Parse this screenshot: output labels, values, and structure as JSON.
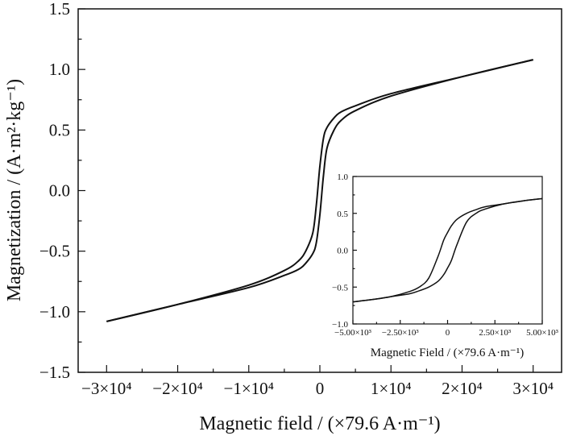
{
  "chart_data": [
    {
      "type": "line",
      "xlabel": "Magnetic field / (×79.6 A·m⁻¹)",
      "ylabel": "Magnetization / (A·m²·kg⁻¹)",
      "xlim": [
        -34000,
        34000
      ],
      "ylim": [
        -1.5,
        1.5
      ],
      "x_ticks": [
        -30000,
        -20000,
        -10000,
        0,
        10000,
        20000,
        30000
      ],
      "x_tick_labels": [
        "−3×10⁴",
        "−2×10⁴",
        "−1×10⁴",
        "0",
        "1×10⁴",
        "2×10⁴",
        "3×10⁴"
      ],
      "y_ticks": [
        -1.5,
        -1.0,
        -0.5,
        0.0,
        0.5,
        1.0,
        1.5
      ],
      "y_tick_labels": [
        "−1.5",
        "−1.0",
        "−0.5",
        "0.0",
        "0.5",
        "1.0",
        "1.5"
      ],
      "grid": false,
      "series": [
        {
          "x": [
            -30000,
            -20000,
            -10000,
            -5000,
            -3000,
            -2000,
            -1000,
            -500,
            0,
            500,
            1000,
            2000,
            3000,
            5000,
            10000,
            20000,
            30000
          ],
          "y": [
            -1.08,
            -0.94,
            -0.78,
            -0.66,
            -0.58,
            -0.5,
            -0.35,
            -0.12,
            0.2,
            0.43,
            0.52,
            0.6,
            0.65,
            0.7,
            0.8,
            0.94,
            1.08
          ]
        },
        {
          "x": [
            30000,
            20000,
            10000,
            5000,
            3000,
            2000,
            1000,
            500,
            0,
            -500,
            -1000,
            -2000,
            -3000,
            -5000,
            -10000,
            -20000,
            -30000
          ],
          "y": [
            1.08,
            0.94,
            0.78,
            0.66,
            0.58,
            0.5,
            0.35,
            0.12,
            -0.2,
            -0.43,
            -0.52,
            -0.6,
            -0.65,
            -0.7,
            -0.8,
            -0.94,
            -1.08
          ]
        }
      ]
    },
    {
      "type": "line",
      "xlabel": "Magnetic Field / (×79.6 A·m⁻¹)",
      "ylabel": "",
      "xlim": [
        -5000,
        5000
      ],
      "ylim": [
        -1.0,
        1.0
      ],
      "x_ticks": [
        -5000,
        -2500,
        0,
        2500,
        5000
      ],
      "x_tick_labels": [
        "−5.00×10³",
        "−2.50×10³",
        "0",
        "2.50×10³",
        "5.00×10³"
      ],
      "y_ticks": [
        -1.0,
        -0.5,
        0.0,
        0.5,
        1.0
      ],
      "y_tick_labels": [
        "−1.0",
        "−0.5",
        "0.0",
        "0.5",
        "1.0"
      ],
      "grid": false,
      "series": [
        {
          "x": [
            -5000,
            -4000,
            -3000,
            -2000,
            -1500,
            -1000,
            -500,
            -200,
            0,
            200,
            500,
            1000,
            1500,
            2000,
            3000,
            4000,
            5000
          ],
          "y": [
            -0.7,
            -0.67,
            -0.63,
            -0.56,
            -0.5,
            -0.38,
            -0.08,
            0.14,
            0.24,
            0.33,
            0.42,
            0.5,
            0.55,
            0.59,
            0.63,
            0.67,
            0.7
          ]
        },
        {
          "x": [
            5000,
            4000,
            3000,
            2000,
            1500,
            1000,
            500,
            200,
            0,
            -200,
            -500,
            -1000,
            -1500,
            -2000,
            -3000,
            -4000,
            -5000
          ],
          "y": [
            0.7,
            0.67,
            0.63,
            0.56,
            0.5,
            0.38,
            0.08,
            -0.14,
            -0.24,
            -0.33,
            -0.42,
            -0.5,
            -0.55,
            -0.59,
            -0.63,
            -0.67,
            -0.7
          ]
        }
      ]
    }
  ]
}
